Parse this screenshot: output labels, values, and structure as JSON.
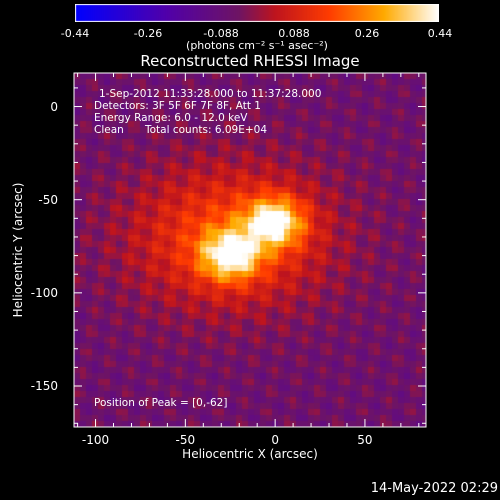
{
  "colorbar": {
    "tick_labels": [
      "-0.44",
      "-0.26",
      "-0.088",
      "0.088",
      "0.26",
      "0.44"
    ],
    "tick_values": [
      -0.44,
      -0.26,
      -0.088,
      0.088,
      0.26,
      0.44
    ],
    "units": "(photons cm⁻² s⁻¹ asec⁻²)",
    "range": [
      -0.44,
      0.44
    ]
  },
  "title": "Reconstructed RHESSI Image",
  "annotations": {
    "time_range": "1-Sep-2012 11:33:28.000 to 11:37:28.000",
    "detectors": "Detectors: 3F 5F 6F 7F 8F, Att 1",
    "energy": "Energy Range: 6.0 - 12.0 keV",
    "clean": "Clean",
    "counts": "Total counts: 6.09E+04",
    "peak": "Position of Peak = [0,-62]"
  },
  "timestamp": "14-May-2022 02:29",
  "chart_data": {
    "type": "heatmap",
    "title": "Reconstructed RHESSI Image",
    "xlabel": "Heliocentric X (arcsec)",
    "ylabel": "Heliocentric Y (arcsec)",
    "xlim": [
      -112,
      84
    ],
    "ylim": [
      -172,
      18
    ],
    "x_ticks": [
      -100,
      -50,
      0,
      50
    ],
    "y_ticks": [
      0,
      -50,
      -100,
      -150
    ],
    "colormap": "hot",
    "value_range": [
      -0.44,
      0.44
    ],
    "peak_position": [
      0,
      -62
    ],
    "sources": [
      {
        "x": 0,
        "y": -62,
        "amplitude": 0.44
      },
      {
        "x": -25,
        "y": -80,
        "amplitude": 0.42
      }
    ]
  }
}
